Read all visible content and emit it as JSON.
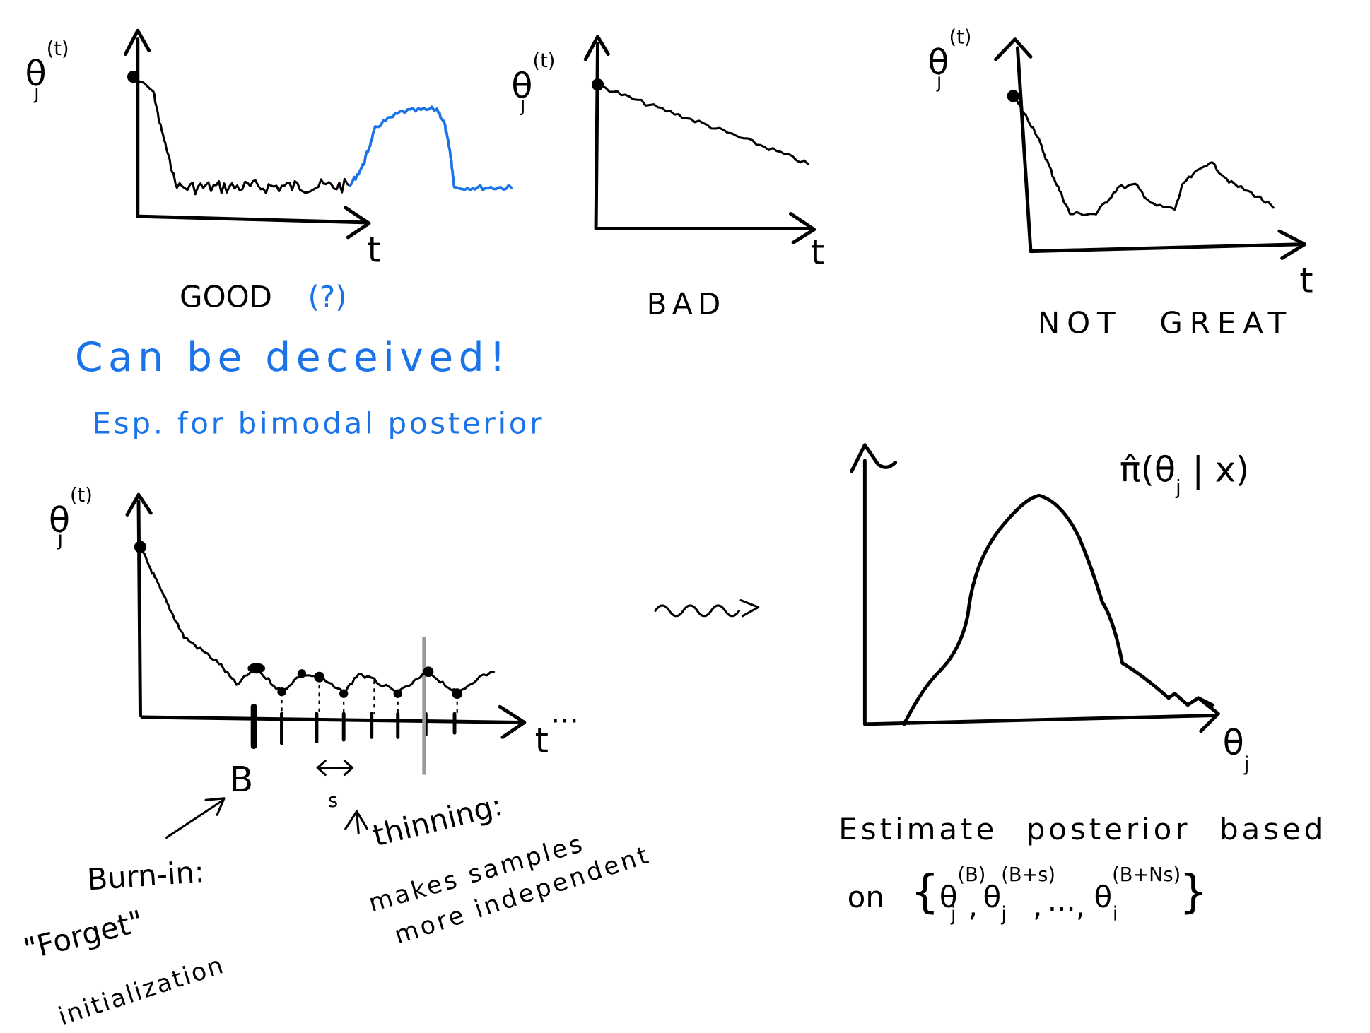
{
  "plots": {
    "good": {
      "y_axis": {
        "symbol": "θ",
        "sub": "j",
        "sup": "(t)"
      },
      "x_axis": "t",
      "caption": "GOOD",
      "caption_note": "(?)",
      "warning": "Can be deceived!",
      "warning_detail": "Esp. for bimodal posterior"
    },
    "bad": {
      "y_axis": {
        "symbol": "θ",
        "sub": "j",
        "sup": "(t)"
      },
      "x_axis": "t",
      "caption": "BAD"
    },
    "not_great": {
      "y_axis": {
        "symbol": "θ",
        "sub": "j",
        "sup": "(t)"
      },
      "x_axis": "t",
      "caption": "NOT GREAT"
    },
    "thinned": {
      "y_axis": {
        "symbol": "θ",
        "sub": "j",
        "sup": "(t)"
      },
      "x_axis": "t",
      "ellipsis": "...",
      "burn_in_marker": "B",
      "thinning_marker": "s",
      "burn_in_note": [
        "Burn-in:",
        "\"Forget\"",
        "initialization"
      ],
      "thinning_note": [
        "thinning:",
        "makes samples",
        "more independent"
      ]
    },
    "posterior": {
      "x_axis": {
        "symbol": "θ",
        "sub": "j"
      },
      "curve_label": {
        "prefix": "π̂(θ",
        "sub": "j",
        "suffix": " | x)"
      },
      "caption": [
        "Estimate posterior based",
        "on"
      ],
      "set": {
        "open": "{",
        "items": [
          {
            "symbol": "θ",
            "sub": "j",
            "sup": "(B)"
          },
          {
            "symbol": "θ",
            "sub": "j",
            "sup": "(B+s)"
          },
          {
            "symbol": "θ",
            "sub": "i",
            "sup": "(B+Ns)"
          }
        ],
        "separator": ",",
        "ellipsis": "...",
        "close": "}"
      }
    }
  }
}
